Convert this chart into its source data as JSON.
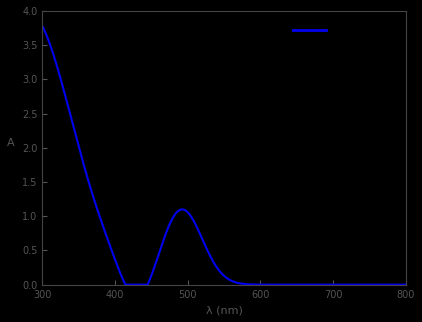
{
  "background_color": "#000000",
  "line_color": "#0000ee",
  "xlim": [
    300,
    800
  ],
  "ylim": [
    0.0,
    4.0
  ],
  "xlabel": "λ (nm)",
  "ylabel": "A",
  "yticks": [
    0.0,
    0.5,
    1.0,
    1.5,
    2.0,
    2.5,
    3.0,
    3.5,
    4.0
  ],
  "xticks": [
    300,
    400,
    500,
    600,
    700,
    800
  ],
  "tick_color": "#555555",
  "label_color": "#555555",
  "spine_color": "#444444",
  "legend_line_x": [
    645,
    690
  ],
  "legend_line_y": [
    3.72,
    3.72
  ],
  "legend_line_color": "#0000ee"
}
